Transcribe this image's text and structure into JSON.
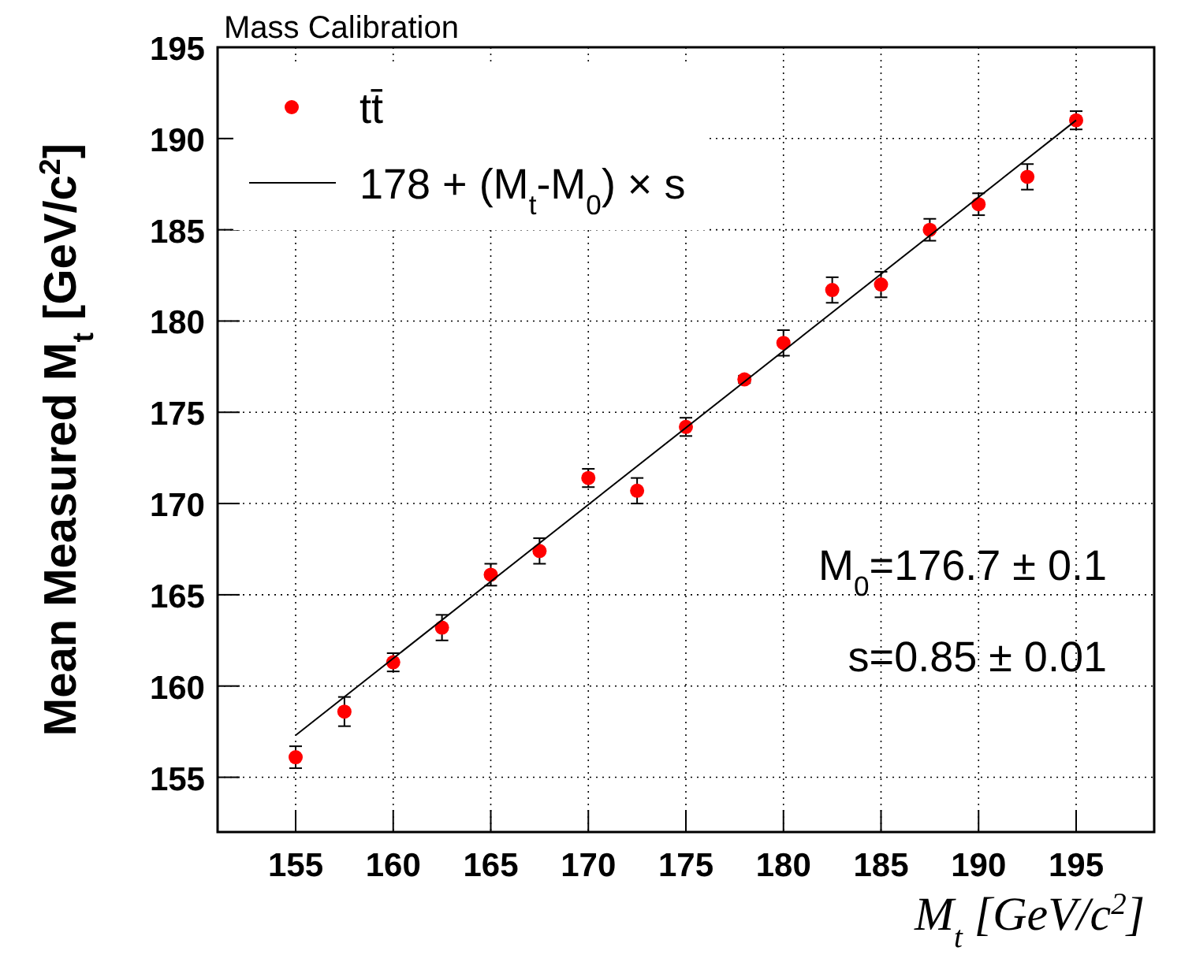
{
  "chart_data": {
    "type": "scatter",
    "title": "Mass Calibration",
    "xlabel": "M$_{t}$ [GeV/c$^{2}$]",
    "ylabel": "Mean Measured M$_{t}$ [GeV/c$^{2}$]",
    "xlim": [
      151,
      199
    ],
    "ylim": [
      152,
      195
    ],
    "xticks": [
      155,
      160,
      165,
      170,
      175,
      180,
      185,
      190,
      195
    ],
    "yticks": [
      155,
      160,
      165,
      170,
      175,
      180,
      185,
      190,
      195
    ],
    "grid": true,
    "legend": "top left",
    "series": [
      {
        "name": "tt̄",
        "marker": "circle",
        "color": "#ff0000",
        "x": [
          155,
          157.5,
          160,
          162.5,
          165,
          167.5,
          170,
          172.5,
          175,
          178,
          180,
          182.5,
          185,
          187.5,
          190,
          192.5,
          195
        ],
        "values": [
          156.1,
          158.6,
          161.3,
          163.2,
          166.1,
          167.4,
          171.4,
          170.7,
          174.2,
          176.8,
          178.8,
          181.7,
          182.0,
          185.0,
          186.4,
          187.9,
          191.0
        ],
        "errors": [
          0.6,
          0.8,
          0.5,
          0.7,
          0.6,
          0.7,
          0.5,
          0.7,
          0.5,
          0.2,
          0.7,
          0.7,
          0.7,
          0.6,
          0.6,
          0.7,
          0.5
        ]
      },
      {
        "name": "178 + (M$_{t}$-M$_{0}$) × s",
        "type": "line",
        "color": "#000000",
        "line_style": "solid",
        "x": [
          155,
          195
        ],
        "values": [
          157.3,
          191.0
        ]
      }
    ],
    "annotations": [
      "M$_{0}$=176.7 ± 0.1",
      "s=0.85  ± 0.01"
    ]
  }
}
